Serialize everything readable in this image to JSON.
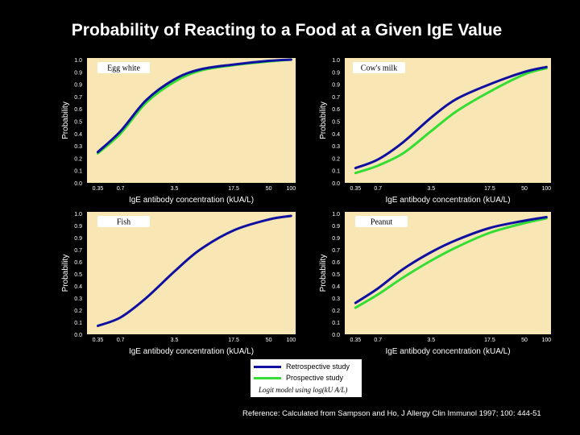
{
  "title": "Probability of Reacting to a Food at a Given IgE Value",
  "colors": {
    "background": "#000000",
    "plot_bg": "#f8e6b4",
    "retrospective": "#1010a0",
    "prospective": "#33dd33"
  },
  "legend": {
    "entries": [
      {
        "label": "Retrospective study",
        "color": "#1010a0"
      },
      {
        "label": "Prospective study",
        "color": "#33dd33"
      }
    ],
    "note": "Logit model using log(kU A/L)"
  },
  "reference": "Reference: Calculated  from Sampson and Ho, J Allergy Clin Immunol 1997; 100: 444-51",
  "chart_data": [
    {
      "type": "line",
      "title": "Egg white",
      "xlabel": "IgE antibody concentration (kUA/L)",
      "ylabel": "Probability",
      "x_scale": "log",
      "xlim": [
        0.35,
        100
      ],
      "ylim": [
        0,
        1
      ],
      "x_ticks": [
        "0.35",
        "0.7",
        "3.5",
        "17.5",
        "50",
        "100"
      ],
      "y_ticks": [
        "1.0",
        "0.9",
        "0.9",
        "0.7",
        "0.6",
        "0.5",
        "0.4",
        "0.3",
        "0.2",
        "0.1",
        "0.0"
      ],
      "grid": false,
      "legend": "bottom-center",
      "x": [
        0.35,
        0.7,
        1.5,
        3.5,
        7,
        17.5,
        50,
        100
      ],
      "series": [
        {
          "name": "Retrospective study",
          "values": [
            0.25,
            0.42,
            0.67,
            0.84,
            0.92,
            0.96,
            0.99,
            1.0
          ]
        },
        {
          "name": "Prospective study",
          "values": [
            0.24,
            0.4,
            0.65,
            0.82,
            0.91,
            0.955,
            0.985,
            1.0
          ]
        }
      ]
    },
    {
      "type": "line",
      "title": "Cow's milk",
      "xlabel": "IgE antibody concentration (kUA/L)",
      "ylabel": "Probability",
      "x_scale": "log",
      "xlim": [
        0.35,
        100
      ],
      "ylim": [
        0,
        1
      ],
      "x_ticks": [
        "0.35",
        "0.7",
        "3.5",
        "17.5",
        "50",
        "100"
      ],
      "y_ticks": [
        "1.0",
        "0.9",
        "0.9",
        "0.7",
        "0.6",
        "0.5",
        "0.4",
        "0.3",
        "0.2",
        "0.1",
        "0.0"
      ],
      "grid": false,
      "x": [
        0.35,
        0.7,
        1.5,
        3.5,
        7,
        17.5,
        50,
        100
      ],
      "series": [
        {
          "name": "Retrospective study",
          "values": [
            0.12,
            0.19,
            0.33,
            0.53,
            0.68,
            0.8,
            0.9,
            0.94
          ]
        },
        {
          "name": "Prospective study",
          "values": [
            0.08,
            0.14,
            0.24,
            0.42,
            0.58,
            0.74,
            0.88,
            0.93
          ]
        }
      ]
    },
    {
      "type": "line",
      "title": "Fish",
      "xlabel": "IgE antibody concentration (kUA/L)",
      "ylabel": "Probability",
      "x_scale": "log",
      "xlim": [
        0.35,
        100
      ],
      "ylim": [
        0,
        1
      ],
      "x_ticks": [
        "0.35",
        "0.7",
        "3.5",
        "17.5",
        "50",
        "100"
      ],
      "y_ticks": [
        "1.0",
        "0.9",
        "0.9",
        "0.7",
        "0.6",
        "0.5",
        "0.4",
        "0.3",
        "0.2",
        "0.1",
        "0.0"
      ],
      "grid": false,
      "x": [
        0.35,
        0.7,
        1.5,
        3.5,
        7,
        17.5,
        50,
        100
      ],
      "series": [
        {
          "name": "Retrospective study",
          "values": [
            0.07,
            0.14,
            0.3,
            0.52,
            0.7,
            0.86,
            0.95,
            0.98
          ]
        }
      ]
    },
    {
      "type": "line",
      "title": "Peanut",
      "xlabel": "IgE antibody concentration (kUA/L)",
      "ylabel": "Probability",
      "x_scale": "log",
      "xlim": [
        0.35,
        100
      ],
      "ylim": [
        0,
        1
      ],
      "x_ticks": [
        "0.35",
        "0.7",
        "3.5",
        "17.5",
        "50",
        "100"
      ],
      "y_ticks": [
        "1.0",
        "0.9",
        "0.9",
        "0.7",
        "0.6",
        "0.5",
        "0.4",
        "0.3",
        "0.2",
        "0.1",
        "0.0"
      ],
      "grid": false,
      "x": [
        0.35,
        0.7,
        1.5,
        3.5,
        7,
        17.5,
        50,
        100
      ],
      "series": [
        {
          "name": "Retrospective study",
          "values": [
            0.26,
            0.38,
            0.54,
            0.68,
            0.78,
            0.88,
            0.94,
            0.97
          ]
        },
        {
          "name": "Prospective study",
          "values": [
            0.22,
            0.33,
            0.47,
            0.61,
            0.72,
            0.84,
            0.92,
            0.96
          ]
        }
      ]
    }
  ]
}
